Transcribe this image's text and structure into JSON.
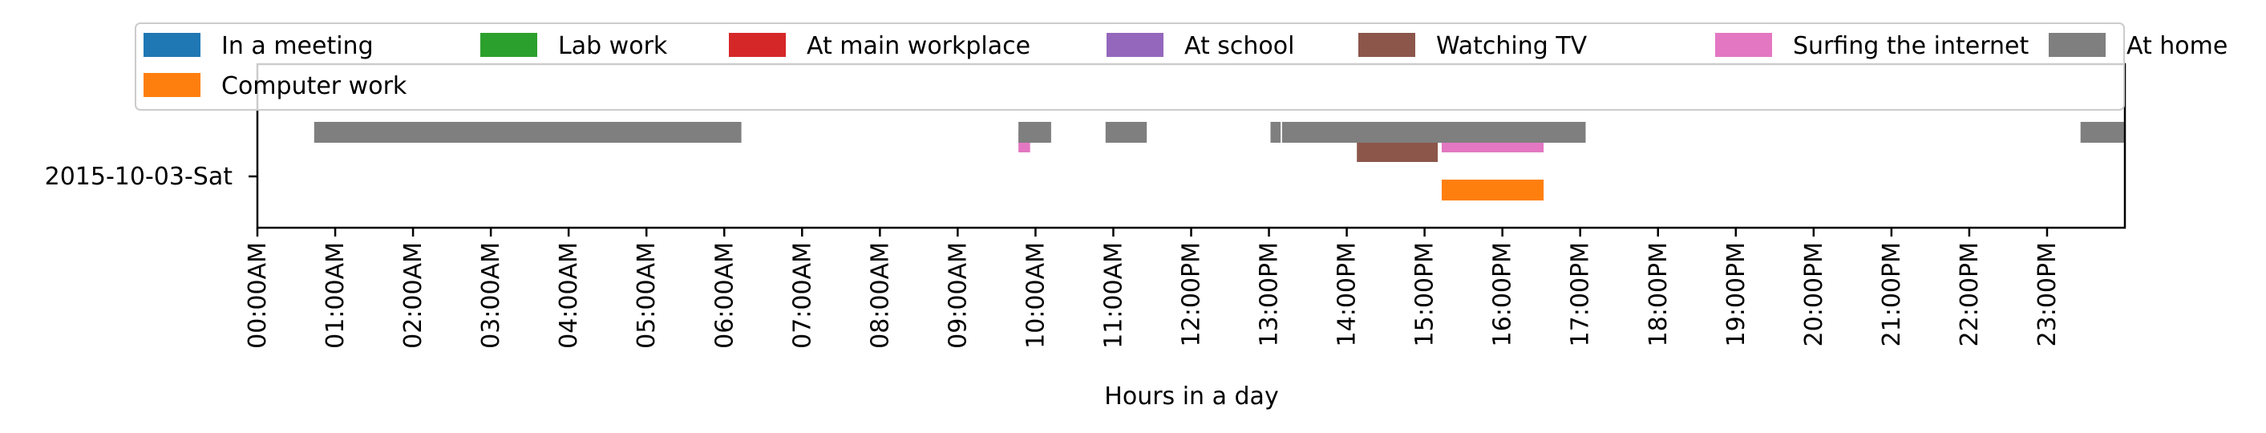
{
  "chart_data": {
    "type": "timeline",
    "row_label": "2015-10-03-Sat",
    "xlabel": "Hours in a day",
    "x_range_hours": [
      0,
      24
    ],
    "x_tick_labels": [
      "00:00AM",
      "01:00AM",
      "02:00AM",
      "03:00AM",
      "04:00AM",
      "05:00AM",
      "06:00AM",
      "07:00AM",
      "08:00AM",
      "09:00AM",
      "10:00AM",
      "11:00AM",
      "12:00PM",
      "13:00PM",
      "14:00PM",
      "15:00PM",
      "16:00PM",
      "17:00PM",
      "18:00PM",
      "19:00PM",
      "20:00PM",
      "21:00PM",
      "22:00PM",
      "23:00PM"
    ],
    "legend_position": "top",
    "series": [
      {
        "name": "In a meeting",
        "color": "#1f77b4",
        "lane": 0,
        "intervals": []
      },
      {
        "name": "Computer work",
        "color": "#ff7f0e",
        "lane": 1,
        "intervals": [
          [
            15.22,
            16.53
          ]
        ]
      },
      {
        "name": "Lab work",
        "color": "#2ca02c",
        "lane": 2,
        "intervals": []
      },
      {
        "name": "At main workplace",
        "color": "#d62728",
        "lane": 3,
        "intervals": []
      },
      {
        "name": "At school",
        "color": "#9467bd",
        "lane": 4,
        "intervals": []
      },
      {
        "name": "Watching TV",
        "color": "#8c564b",
        "lane": 5,
        "intervals": [
          [
            14.13,
            15.17
          ]
        ]
      },
      {
        "name": "Surfing the internet",
        "color": "#e377c2",
        "lane": 6,
        "intervals": [
          [
            9.78,
            9.93
          ],
          [
            15.22,
            16.53
          ]
        ]
      },
      {
        "name": "At home",
        "color": "#7f7f7f",
        "lane": 7,
        "intervals": [
          [
            0.73,
            6.22
          ],
          [
            9.78,
            10.2
          ],
          [
            10.9,
            11.43
          ],
          [
            13.02,
            13.15
          ],
          [
            13.17,
            17.07
          ],
          [
            23.43,
            24.0
          ]
        ]
      }
    ]
  }
}
